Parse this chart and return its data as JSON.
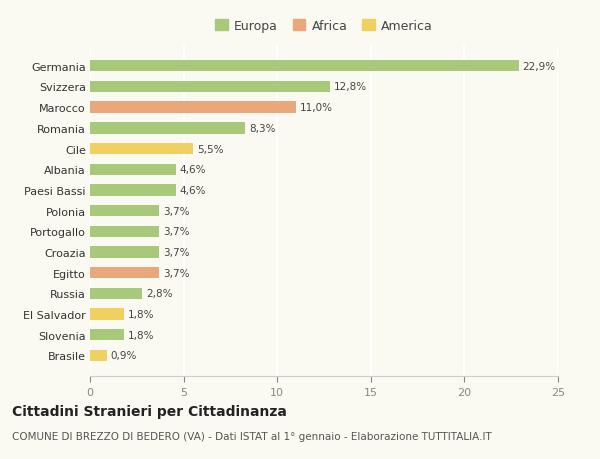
{
  "categories": [
    "Germania",
    "Svizzera",
    "Marocco",
    "Romania",
    "Cile",
    "Albania",
    "Paesi Bassi",
    "Polonia",
    "Portogallo",
    "Croazia",
    "Egitto",
    "Russia",
    "El Salvador",
    "Slovenia",
    "Brasile"
  ],
  "values": [
    22.9,
    12.8,
    11.0,
    8.3,
    5.5,
    4.6,
    4.6,
    3.7,
    3.7,
    3.7,
    3.7,
    2.8,
    1.8,
    1.8,
    0.9
  ],
  "labels": [
    "22,9%",
    "12,8%",
    "11,0%",
    "8,3%",
    "5,5%",
    "4,6%",
    "4,6%",
    "3,7%",
    "3,7%",
    "3,7%",
    "3,7%",
    "2,8%",
    "1,8%",
    "1,8%",
    "0,9%"
  ],
  "continents": [
    "Europa",
    "Europa",
    "Africa",
    "Europa",
    "America",
    "Europa",
    "Europa",
    "Europa",
    "Europa",
    "Europa",
    "Africa",
    "Europa",
    "America",
    "Europa",
    "America"
  ],
  "colors": {
    "Europa": "#a8c87a",
    "Africa": "#e8a87c",
    "America": "#f0d060"
  },
  "title": "Cittadini Stranieri per Cittadinanza",
  "subtitle": "COMUNE DI BREZZO DI BEDERO (VA) - Dati ISTAT al 1° gennaio - Elaborazione TUTTITALIA.IT",
  "xlim": [
    0,
    25
  ],
  "xticks": [
    0,
    5,
    10,
    15,
    20,
    25
  ],
  "background_color": "#fafaf2",
  "grid_color": "#ffffff",
  "bar_height": 0.55,
  "title_fontsize": 10,
  "subtitle_fontsize": 7.5,
  "label_fontsize": 7.5,
  "tick_fontsize": 8,
  "legend_fontsize": 9
}
